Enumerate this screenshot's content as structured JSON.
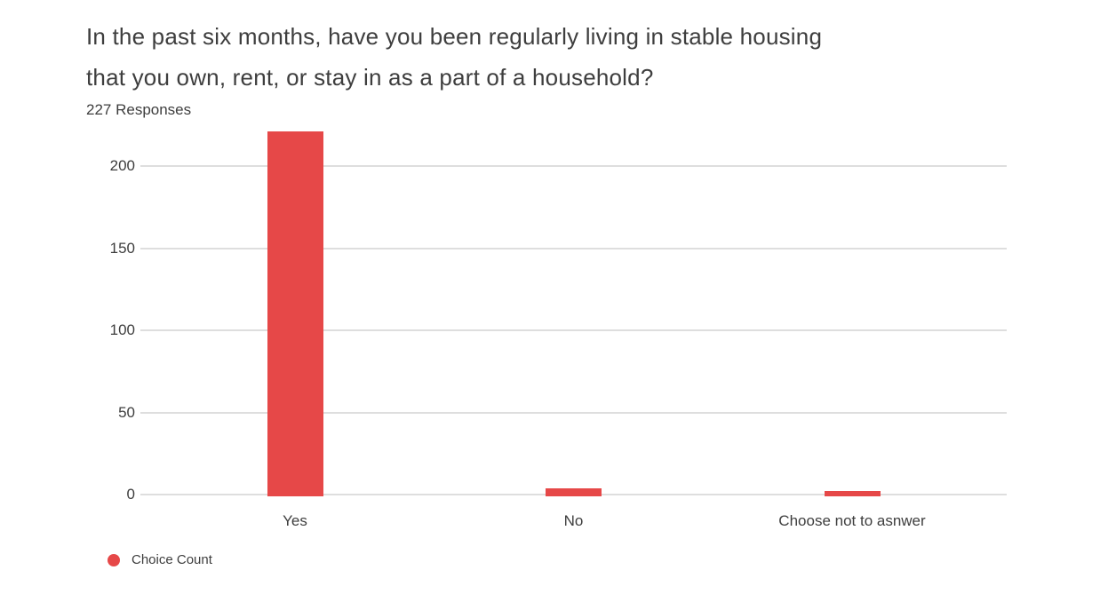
{
  "chart_data": {
    "type": "bar",
    "title": "In the past six months, have you been regularly living in stable housing that you own, rent, or stay in as a part of a household?",
    "title_lines": [
      "In the past six months, have you been regularly living in stable housing",
      "that you own, rent, or stay in as a part of a household?"
    ],
    "subtitle": "227 Responses",
    "categories": [
      "Yes",
      "No",
      "Choose not to asnwer"
    ],
    "series": [
      {
        "name": "Choice Count",
        "values": [
          221,
          4,
          2
        ]
      }
    ],
    "xlabel": "",
    "ylabel": "",
    "ylim": [
      0,
      200
    ],
    "yticks": [
      0,
      50,
      100,
      150,
      200
    ],
    "grid": true,
    "legend_position": "bottom-left",
    "colors": {
      "bar": "#e64848",
      "gridline": "#dedede",
      "text": "#3e3e3e",
      "background": "#ffffff"
    }
  }
}
